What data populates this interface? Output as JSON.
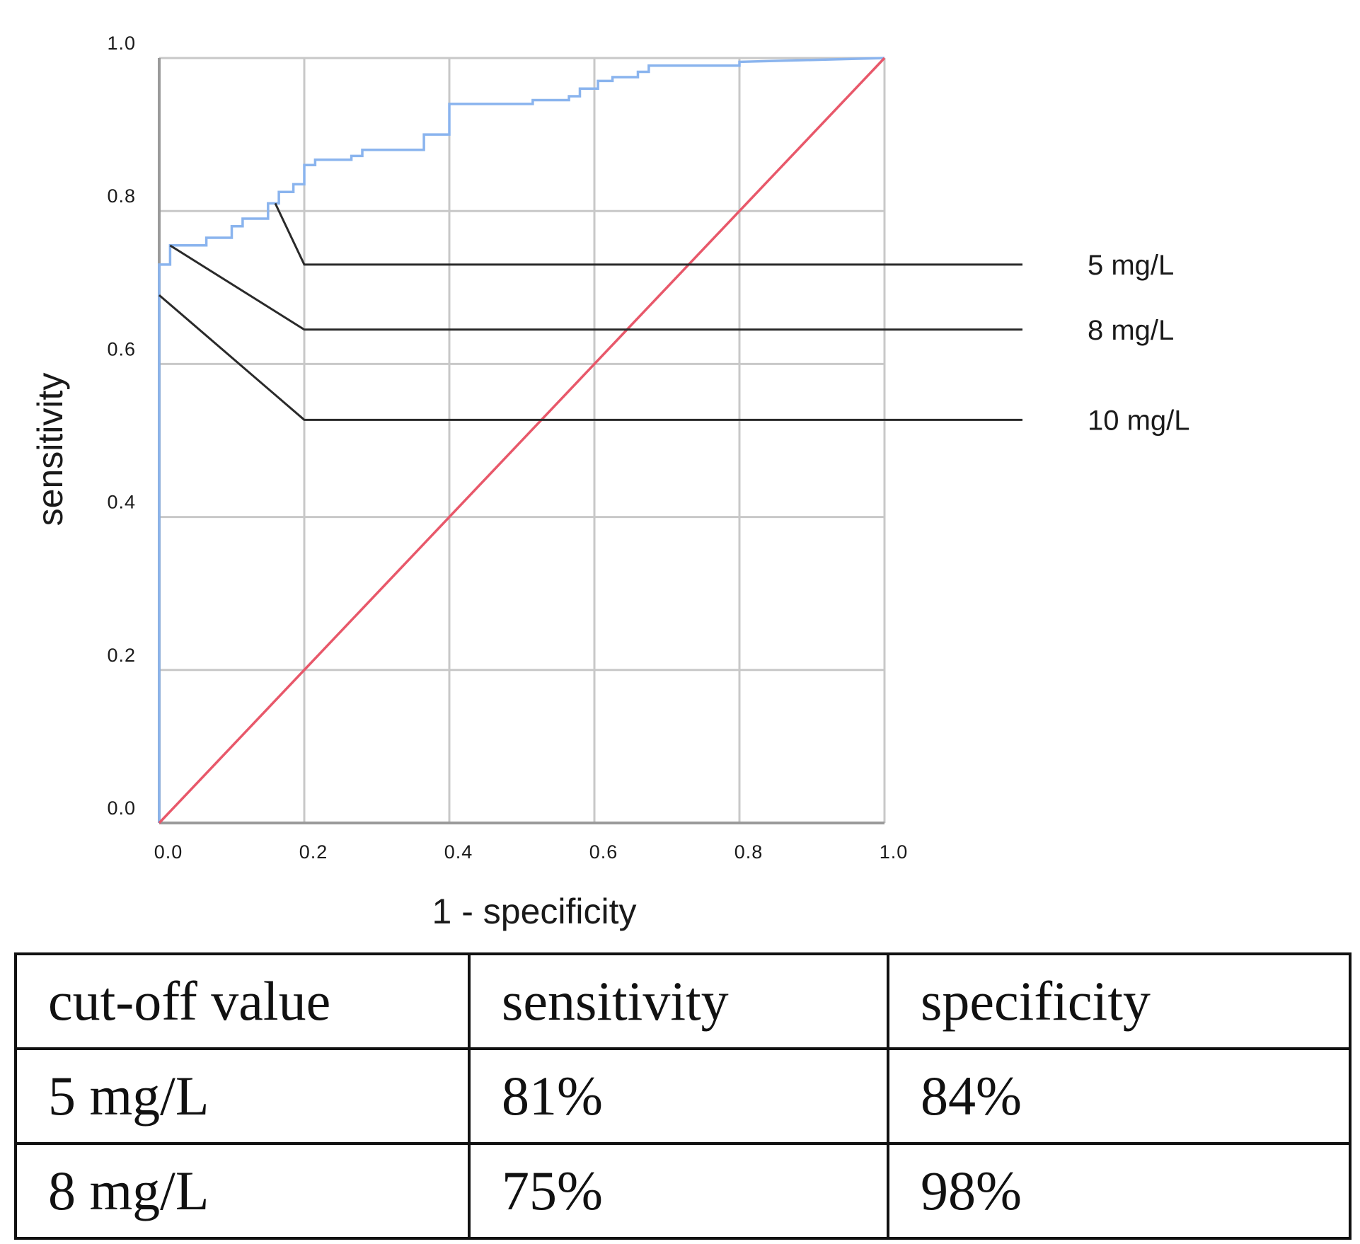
{
  "chart_data": {
    "type": "line",
    "xlabel": "1 - specificity",
    "ylabel": "sensitivity",
    "xlim": [
      0,
      1
    ],
    "ylim": [
      0,
      1
    ],
    "grid": true,
    "x_ticks": [
      "0.0",
      "0.2",
      "0.4",
      "0.6",
      "0.8",
      "1.0"
    ],
    "y_ticks": [
      "0.0",
      "0.2",
      "0.4",
      "0.6",
      "0.8",
      "1.0"
    ],
    "colors": {
      "roc": "#8ab4ee",
      "reference": "#e8586a",
      "grid": "#c8c8c8",
      "annotation": "#2a2a2a"
    },
    "series": [
      {
        "style": "step",
        "color": "#8ab4ee",
        "x": [
          0,
          0,
          0.015,
          0.015,
          0.065,
          0.065,
          0.1,
          0.1,
          0.115,
          0.115,
          0.15,
          0.15,
          0.165,
          0.165,
          0.185,
          0.185,
          0.2,
          0.2,
          0.215,
          0.215,
          0.265,
          0.265,
          0.28,
          0.28,
          0.365,
          0.365,
          0.4,
          0.4,
          0.515,
          0.515,
          0.565,
          0.565,
          0.58,
          0.58,
          0.605,
          0.605,
          0.625,
          0.625,
          0.66,
          0.66,
          0.675,
          0.675,
          0.8,
          0.8,
          1.0
        ],
        "y": [
          0,
          0.73,
          0.73,
          0.755,
          0.755,
          0.765,
          0.765,
          0.78,
          0.78,
          0.79,
          0.79,
          0.81,
          0.81,
          0.825,
          0.825,
          0.835,
          0.835,
          0.86,
          0.86,
          0.867,
          0.867,
          0.872,
          0.872,
          0.88,
          0.88,
          0.9,
          0.9,
          0.94,
          0.94,
          0.945,
          0.945,
          0.95,
          0.95,
          0.96,
          0.96,
          0.97,
          0.97,
          0.975,
          0.975,
          0.982,
          0.982,
          0.99,
          0.99,
          0.995,
          1.0
        ]
      },
      {
        "style": "line",
        "color": "#e8586a",
        "x": [
          0,
          1
        ],
        "y": [
          0,
          1
        ]
      }
    ],
    "annotations": [
      {
        "label": "5 mg/L",
        "point": [
          0.16,
          0.81
        ],
        "elbow": [
          0.2,
          0.73
        ]
      },
      {
        "label": "8 mg/L",
        "point": [
          0.015,
          0.755
        ],
        "elbow": [
          0.2,
          0.645
        ]
      },
      {
        "label": "10 mg/L",
        "point": [
          0.0,
          0.69
        ],
        "elbow": [
          0.2,
          0.527
        ]
      }
    ]
  },
  "table": {
    "header": [
      "cut-off value",
      "sensitivity",
      "specificity"
    ],
    "rows": [
      [
        "5 mg/L",
        "81%",
        "84%"
      ],
      [
        "8 mg/L",
        "75%",
        "98%"
      ]
    ]
  }
}
